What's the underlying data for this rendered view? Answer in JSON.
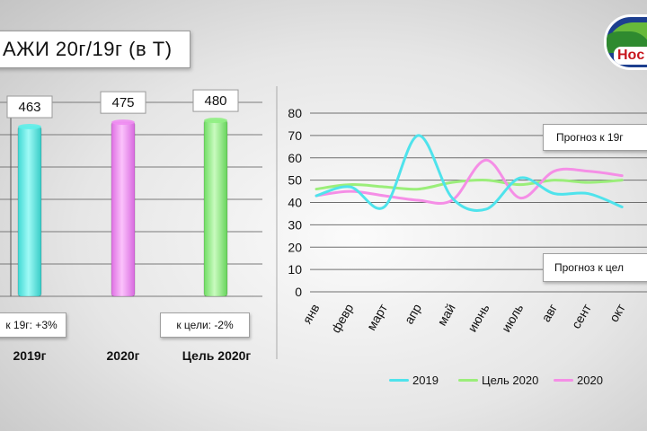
{
  "slide": {
    "title": "АЖИ 20г/19г (в Т)",
    "logo_text": "Hoc",
    "accent_colors": {
      "logo_blue": "#1d3f8f",
      "logo_red": "#c7161d",
      "logo_green": "#67b93a"
    }
  },
  "chart_data": [
    {
      "type": "bar",
      "categories": [
        "2019г",
        "2020г",
        "Цель 2020г"
      ],
      "values": [
        463,
        475,
        480
      ],
      "value_labels": [
        "463",
        "475",
        "480"
      ],
      "colors": [
        "#5ef0ea",
        "#f08cf2",
        "#8fef82"
      ],
      "annotations": [
        "к 19г: +3%",
        "к цели: -2%"
      ],
      "gridlines": true
    },
    {
      "type": "line",
      "categories": [
        "янв",
        "февр",
        "март",
        "апр",
        "май",
        "июнь",
        "июль",
        "авг",
        "сент",
        "окт"
      ],
      "ylim": [
        0,
        80
      ],
      "yticks": [
        "0",
        "10",
        "20",
        "30",
        "40",
        "50",
        "60",
        "70",
        "80"
      ],
      "series": [
        {
          "name": "2019",
          "color": "#4fe3ec",
          "values": [
            43,
            47,
            38,
            70,
            42,
            37,
            51,
            44,
            44,
            38
          ]
        },
        {
          "name": "Цель 2020",
          "color": "#9bee7a",
          "values": [
            46,
            48,
            47,
            46,
            49,
            50,
            48,
            50,
            49,
            50
          ]
        },
        {
          "name": "2020",
          "color": "#f58ee6",
          "values": [
            43,
            45,
            43,
            41,
            41,
            59,
            42,
            54,
            54,
            52
          ]
        }
      ],
      "annotations": [
        "Прогноз к 19г",
        "Прогноз к цел"
      ],
      "legend_position": "bottom",
      "gridlines": true
    }
  ]
}
